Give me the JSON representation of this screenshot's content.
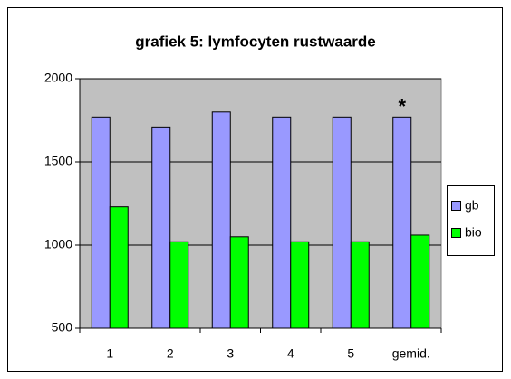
{
  "chart_data": {
    "type": "bar",
    "title": "grafiek 5: lymfocyten rustwaarde",
    "categories": [
      "1",
      "2",
      "3",
      "4",
      "5",
      "gemid."
    ],
    "series": [
      {
        "name": "gb",
        "color": "#9999ff",
        "values": [
          1770,
          1710,
          1800,
          1770,
          1770,
          1770
        ]
      },
      {
        "name": "bio",
        "color": "#00ff00",
        "values": [
          1230,
          1020,
          1050,
          1020,
          1020,
          1060
        ]
      }
    ],
    "annotation": "*",
    "ylim": [
      500,
      2000
    ],
    "yticks": [
      500,
      1000,
      1500,
      2000
    ],
    "grid": true,
    "plot_background": "#c0c0c0",
    "legend": "right"
  }
}
